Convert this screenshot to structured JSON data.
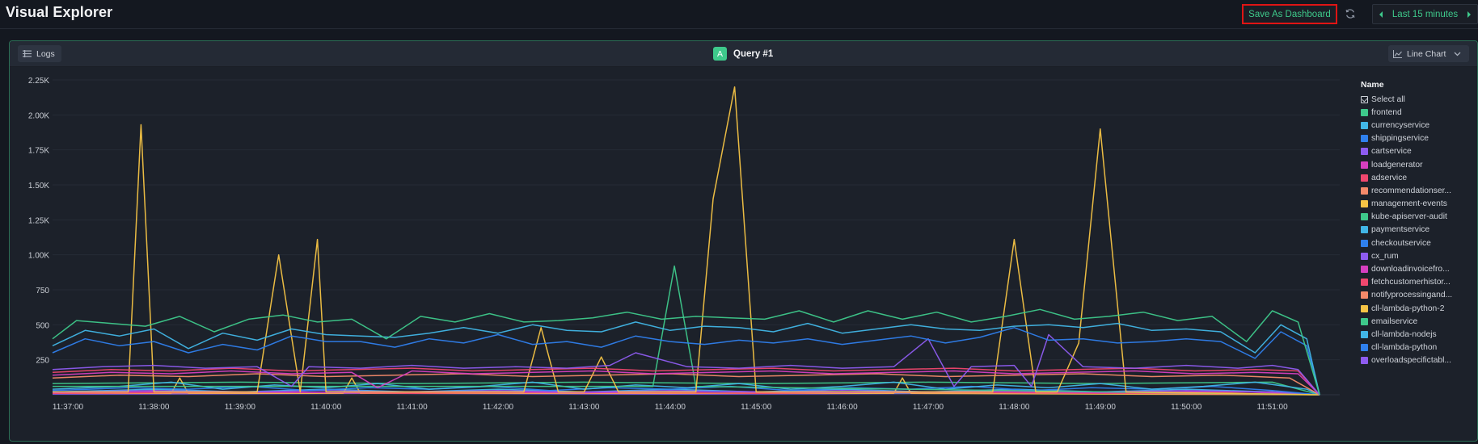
{
  "app": {
    "title": "Visual Explorer"
  },
  "toolbar": {
    "save_label": "Save As Dashboard",
    "time_range_label": "Last 15 minutes",
    "icons": {
      "refresh": "refresh-icon",
      "prev": "caret-left-icon",
      "next": "caret-right-icon"
    }
  },
  "panel": {
    "logs_label": "Logs",
    "query_badge": "A",
    "query_title": "Query #1",
    "chart_type_label": "Line Chart",
    "accent": "#3ec98b",
    "border_color": "#2b6e55"
  },
  "legend": {
    "title": "Name",
    "select_all": "Select all",
    "items": [
      {
        "name": "frontend",
        "color": "#3ec98b"
      },
      {
        "name": "currencyservice",
        "color": "#41b6e6"
      },
      {
        "name": "shippingservice",
        "color": "#2f80ed"
      },
      {
        "name": "cartservice",
        "color": "#8e5cf0"
      },
      {
        "name": "loadgenerator",
        "color": "#d63fbf"
      },
      {
        "name": "adservice",
        "color": "#f0476e"
      },
      {
        "name": "recommendationser...",
        "color": "#f58a6a"
      },
      {
        "name": "management-events",
        "color": "#f6c445"
      },
      {
        "name": "kube-apiserver-audit",
        "color": "#3ec98b"
      },
      {
        "name": "paymentservice",
        "color": "#41b6e6"
      },
      {
        "name": "checkoutservice",
        "color": "#2f80ed"
      },
      {
        "name": "cx_rum",
        "color": "#8e5cf0"
      },
      {
        "name": "downloadinvoicefro...",
        "color": "#d63fbf"
      },
      {
        "name": "fetchcustomerhistor...",
        "color": "#f0476e"
      },
      {
        "name": "notifyprocessingand...",
        "color": "#f58a6a"
      },
      {
        "name": "cll-lambda-python-2",
        "color": "#f6c445"
      },
      {
        "name": "emailservice",
        "color": "#3ec98b"
      },
      {
        "name": "cll-lambda-nodejs",
        "color": "#41b6e6"
      },
      {
        "name": "cll-lambda-python",
        "color": "#2f80ed"
      },
      {
        "name": "overloadspecifictabl...",
        "color": "#8e5cf0"
      }
    ]
  },
  "chart_data": {
    "type": "line",
    "title": "",
    "xlabel": "",
    "ylabel": "",
    "ylim": [
      0,
      2250
    ],
    "y_ticks": [
      "250",
      "500",
      "750",
      "1.00K",
      "1.25K",
      "1.50K",
      "1.75K",
      "2.00K",
      "2.25K"
    ],
    "y_tick_values": [
      250,
      500,
      750,
      1000,
      1250,
      1500,
      1750,
      2000,
      2250
    ],
    "x_ticks": [
      "11:37:00",
      "11:38:00",
      "11:39:00",
      "11:40:00",
      "11:41:00",
      "11:42:00",
      "11:43:00",
      "11:44:00",
      "11:45:00",
      "11:46:00",
      "11:47:00",
      "11:48:00",
      "11:49:00",
      "11:50:00",
      "11:51:00"
    ],
    "x_tick_minutes": [
      0,
      1,
      2,
      3,
      4,
      5,
      6,
      7,
      8,
      9,
      10,
      11,
      12,
      13,
      14
    ],
    "x_range_minutes": [
      -0.2,
      14.8
    ],
    "grid": true,
    "legend_placement": "right",
    "series": [
      {
        "name": "frontend",
        "color": "#3ec98b",
        "x": [
          -0.2,
          0.1,
          0.5,
          0.9,
          1.3,
          1.7,
          2.1,
          2.5,
          2.9,
          3.3,
          3.7,
          4.1,
          4.5,
          4.9,
          5.3,
          5.7,
          6.1,
          6.5,
          6.9,
          7.3,
          7.7,
          8.1,
          8.5,
          8.9,
          9.3,
          9.7,
          10.1,
          10.5,
          10.9,
          11.3,
          11.7,
          12.1,
          12.5,
          12.9,
          13.3,
          13.7,
          14.0,
          14.3,
          14.55
        ],
        "y": [
          400,
          530,
          510,
          490,
          560,
          450,
          540,
          570,
          520,
          540,
          400,
          560,
          520,
          580,
          520,
          530,
          550,
          590,
          540,
          560,
          550,
          540,
          600,
          520,
          600,
          540,
          590,
          520,
          560,
          610,
          540,
          560,
          590,
          530,
          560,
          380,
          600,
          520,
          0
        ]
      },
      {
        "name": "currencyservice",
        "color": "#41b6e6",
        "x": [
          -0.2,
          0.2,
          0.6,
          1.0,
          1.4,
          1.8,
          2.2,
          2.6,
          3.0,
          3.4,
          3.8,
          4.2,
          4.6,
          5.0,
          5.4,
          5.8,
          6.2,
          6.6,
          7.0,
          7.4,
          7.8,
          8.2,
          8.6,
          9.0,
          9.4,
          9.8,
          10.2,
          10.6,
          11.0,
          11.4,
          11.8,
          12.2,
          12.6,
          13.0,
          13.4,
          13.8,
          14.1,
          14.4,
          14.55
        ],
        "y": [
          350,
          460,
          420,
          470,
          330,
          440,
          390,
          470,
          430,
          420,
          410,
          440,
          480,
          440,
          500,
          460,
          450,
          520,
          460,
          490,
          480,
          450,
          510,
          440,
          470,
          500,
          470,
          460,
          490,
          500,
          480,
          510,
          460,
          470,
          450,
          300,
          500,
          400,
          0
        ]
      },
      {
        "name": "shippingservice",
        "color": "#2f80ed",
        "x": [
          -0.2,
          0.2,
          0.6,
          1.0,
          1.4,
          1.8,
          2.2,
          2.6,
          3.0,
          3.4,
          3.8,
          4.2,
          4.6,
          5.0,
          5.4,
          5.8,
          6.2,
          6.6,
          7.0,
          7.4,
          7.8,
          8.2,
          8.6,
          9.0,
          9.4,
          9.8,
          10.2,
          10.6,
          11.0,
          11.4,
          11.8,
          12.2,
          12.6,
          13.0,
          13.4,
          13.8,
          14.1,
          14.4,
          14.55
        ],
        "y": [
          300,
          400,
          350,
          380,
          300,
          360,
          320,
          420,
          380,
          380,
          340,
          400,
          370,
          430,
          360,
          380,
          340,
          420,
          380,
          360,
          390,
          370,
          400,
          360,
          390,
          420,
          370,
          410,
          480,
          390,
          400,
          370,
          380,
          400,
          380,
          260,
          450,
          350,
          0
        ]
      },
      {
        "name": "cartservice",
        "color": "#8e5cf0",
        "x": [
          -0.2,
          0.4,
          1.0,
          1.6,
          2.2,
          2.6,
          2.8,
          3.4,
          4.0,
          4.6,
          5.2,
          5.8,
          6.3,
          6.6,
          7.2,
          7.8,
          8.4,
          9.0,
          9.6,
          10.0,
          10.3,
          10.5,
          11.0,
          11.2,
          11.4,
          11.8,
          12.4,
          13.0,
          13.6,
          14.0,
          14.3,
          14.55
        ],
        "y": [
          180,
          200,
          210,
          190,
          200,
          60,
          200,
          190,
          210,
          190,
          200,
          190,
          210,
          300,
          200,
          190,
          210,
          190,
          200,
          400,
          60,
          200,
          210,
          60,
          430,
          200,
          190,
          210,
          190,
          210,
          180,
          0
        ]
      },
      {
        "name": "loadgenerator",
        "color": "#d63fbf",
        "x": [
          -0.2,
          0.5,
          1.2,
          1.9,
          2.6,
          3.3,
          3.6,
          4.0,
          4.7,
          5.4,
          6.1,
          6.8,
          7.5,
          8.2,
          8.9,
          9.6,
          10.3,
          11.0,
          11.7,
          12.4,
          13.1,
          13.8,
          14.3,
          14.55
        ],
        "y": [
          140,
          160,
          150,
          170,
          150,
          160,
          50,
          170,
          150,
          160,
          170,
          150,
          160,
          170,
          150,
          160,
          170,
          150,
          160,
          170,
          150,
          160,
          150,
          0
        ]
      },
      {
        "name": "adservice",
        "color": "#f0476e",
        "x": [
          -0.2,
          0.5,
          1.2,
          1.9,
          2.6,
          3.3,
          4.0,
          4.7,
          5.4,
          6.1,
          6.8,
          7.5,
          8.2,
          8.9,
          9.6,
          10.3,
          11.0,
          11.7,
          12.4,
          13.1,
          13.8,
          14.3,
          14.55
        ],
        "y": [
          160,
          180,
          170,
          190,
          170,
          180,
          190,
          170,
          180,
          190,
          170,
          180,
          190,
          170,
          180,
          190,
          170,
          180,
          190,
          170,
          180,
          170,
          0
        ]
      },
      {
        "name": "recommendationser...",
        "color": "#f58a6a",
        "x": [
          -0.2,
          0.6,
          1.4,
          2.2,
          3.0,
          3.8,
          4.6,
          5.4,
          6.2,
          7.0,
          7.8,
          8.6,
          9.4,
          10.2,
          11.0,
          11.8,
          12.6,
          13.4,
          14.2,
          14.55
        ],
        "y": [
          120,
          140,
          130,
          150,
          130,
          140,
          150,
          130,
          140,
          150,
          130,
          140,
          150,
          130,
          140,
          150,
          130,
          140,
          120,
          0
        ]
      },
      {
        "name": "management-events",
        "color": "#f6c445",
        "x": [
          -0.2,
          0.7,
          0.85,
          1.0,
          1.5,
          2.2,
          2.45,
          2.7,
          2.9,
          3.0,
          3.2,
          5.3,
          5.5,
          5.7,
          6.0,
          6.2,
          6.4,
          7.3,
          7.5,
          7.75,
          8.0,
          8.4,
          10.0,
          10.75,
          11.0,
          11.25,
          11.5,
          11.75,
          12.0,
          12.3,
          14.55
        ],
        "y": [
          20,
          20,
          1930,
          20,
          20,
          20,
          1000,
          20,
          1110,
          20,
          20,
          20,
          480,
          20,
          20,
          270,
          20,
          20,
          1400,
          2200,
          20,
          20,
          20,
          20,
          1110,
          20,
          20,
          370,
          1900,
          20,
          0
        ]
      },
      {
        "name": "kube-apiserver-audit",
        "color": "#3ec98b",
        "x": [
          -0.2,
          6.8,
          7.05,
          7.3,
          14.55
        ],
        "y": [
          60,
          60,
          920,
          60,
          0
        ]
      },
      {
        "name": "paymentservice",
        "color": "#41b6e6",
        "x": [
          -0.2,
          0.6,
          1.2,
          1.8,
          2.4,
          3.0,
          3.6,
          4.2,
          4.8,
          5.4,
          6.0,
          6.6,
          7.2,
          7.8,
          8.4,
          9.0,
          9.6,
          10.2,
          10.8,
          11.4,
          12.0,
          12.6,
          13.2,
          13.8,
          14.4,
          14.55
        ],
        "y": [
          40,
          60,
          90,
          40,
          70,
          50,
          80,
          40,
          60,
          90,
          40,
          70,
          50,
          80,
          40,
          60,
          90,
          40,
          70,
          50,
          80,
          40,
          60,
          90,
          40,
          0
        ]
      },
      {
        "name": "checkoutservice",
        "color": "#2f80ed",
        "x": [
          -0.2,
          0.7,
          1.4,
          2.1,
          2.8,
          3.5,
          4.2,
          4.9,
          5.6,
          6.3,
          7.0,
          7.7,
          8.4,
          9.1,
          9.8,
          10.5,
          11.2,
          11.9,
          12.6,
          13.3,
          14.0,
          14.55
        ],
        "y": [
          30,
          50,
          40,
          60,
          30,
          50,
          40,
          60,
          30,
          50,
          40,
          60,
          30,
          50,
          40,
          60,
          30,
          50,
          40,
          60,
          30,
          0
        ]
      },
      {
        "name": "cx_rum",
        "color": "#8e5cf0",
        "x": [
          -0.2,
          1.0,
          2.0,
          3.0,
          4.0,
          5.0,
          6.0,
          7.0,
          8.0,
          9.0,
          10.0,
          11.0,
          12.0,
          13.0,
          14.0,
          14.55
        ],
        "y": [
          20,
          30,
          20,
          30,
          20,
          30,
          20,
          30,
          20,
          30,
          20,
          30,
          20,
          30,
          20,
          0
        ]
      },
      {
        "name": "downloadinvoicefro...",
        "color": "#d63fbf",
        "x": [
          -0.2,
          1.5,
          3.0,
          4.5,
          6.0,
          7.5,
          9.0,
          10.5,
          12.0,
          13.5,
          14.55
        ],
        "y": [
          15,
          25,
          15,
          25,
          15,
          25,
          15,
          25,
          15,
          25,
          0
        ]
      },
      {
        "name": "fetchcustomerhistor...",
        "color": "#f0476e",
        "x": [
          -0.2,
          2.0,
          4.0,
          6.0,
          8.0,
          10.0,
          12.0,
          14.0,
          14.55
        ],
        "y": [
          10,
          20,
          10,
          20,
          10,
          20,
          10,
          20,
          0
        ]
      },
      {
        "name": "notifyprocessingand...",
        "color": "#f58a6a",
        "x": [
          -0.2,
          3.0,
          6.0,
          9.0,
          12.0,
          14.55
        ],
        "y": [
          10,
          15,
          10,
          15,
          10,
          0
        ]
      },
      {
        "name": "cll-lambda-python-2",
        "color": "#f6c445",
        "x": [
          -0.2,
          1.2,
          1.3,
          1.4,
          3.2,
          3.3,
          3.4,
          9.6,
          9.7,
          9.8,
          14.55
        ],
        "y": [
          10,
          10,
          120,
          10,
          10,
          120,
          10,
          10,
          120,
          10,
          0
        ]
      },
      {
        "name": "emailservice",
        "color": "#3ec98b",
        "x": [
          -0.2,
          2.0,
          4.0,
          6.0,
          8.0,
          10.0,
          12.0,
          14.0,
          14.55
        ],
        "y": [
          80,
          90,
          80,
          90,
          80,
          90,
          80,
          90,
          0
        ]
      },
      {
        "name": "cll-lambda-nodejs",
        "color": "#41b6e6",
        "x": [
          -0.2,
          1.0,
          2.0,
          3.0,
          4.0,
          5.0,
          6.0,
          7.0,
          8.0,
          9.0,
          10.0,
          11.0,
          12.0,
          13.0,
          14.0,
          14.55
        ],
        "y": [
          20,
          40,
          20,
          40,
          20,
          40,
          20,
          40,
          20,
          40,
          20,
          40,
          20,
          40,
          20,
          0
        ]
      },
      {
        "name": "cll-lambda-python",
        "color": "#2f80ed",
        "x": [
          -0.2,
          2.5,
          5.0,
          7.5,
          10.0,
          12.5,
          14.55
        ],
        "y": [
          10,
          15,
          10,
          15,
          10,
          15,
          0
        ]
      },
      {
        "name": "overloadspecifictabl...",
        "color": "#8e5cf0",
        "x": [
          -0.2,
          3.5,
          7.0,
          10.5,
          14.0,
          14.55
        ],
        "y": [
          5,
          10,
          5,
          10,
          5,
          0
        ]
      }
    ]
  }
}
